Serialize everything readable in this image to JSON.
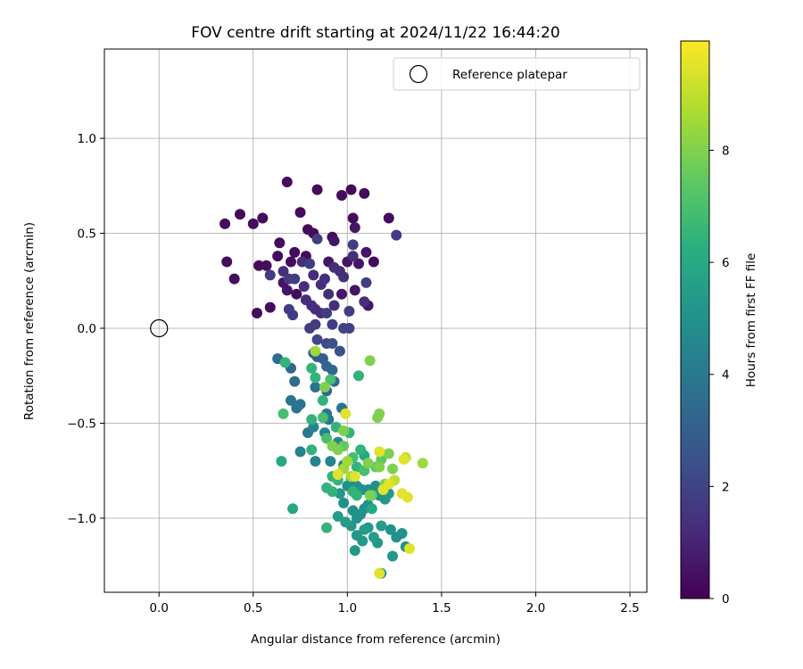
{
  "chart_data": {
    "type": "scatter",
    "title": "FOV centre drift starting at 2024/11/22 16:44:20",
    "xlabel": "Angular distance from reference (arcmin)",
    "ylabel": "Rotation from reference (arcmin)",
    "xlim": [
      -0.29,
      2.59
    ],
    "ylim": [
      -1.39,
      1.47
    ],
    "xticks": [
      0.0,
      0.5,
      1.0,
      1.5,
      2.0,
      2.5
    ],
    "xtick_labels": [
      "0.0",
      "0.5",
      "1.0",
      "1.5",
      "2.0",
      "2.5"
    ],
    "yticks": [
      -1.0,
      -0.5,
      0.0,
      0.5,
      1.0
    ],
    "ytick_labels": [
      "−1.0",
      "−0.5",
      "0.0",
      "0.5",
      "1.0"
    ],
    "grid": true,
    "legend": {
      "position": "top-right",
      "entries": [
        "Reference platepar"
      ]
    },
    "reference_point": {
      "x": 0.0,
      "y": 0.0,
      "label": "Reference platepar"
    },
    "colorbar": {
      "label": "Hours from first FF file",
      "colormap": "viridis",
      "range": [
        0,
        9.95
      ],
      "ticks": [
        0,
        2,
        4,
        6,
        8
      ],
      "tick_labels": [
        "0",
        "2",
        "4",
        "6",
        "8"
      ]
    },
    "points": [
      [
        0.35,
        0.55,
        0.3
      ],
      [
        0.43,
        0.6,
        0.3
      ],
      [
        0.5,
        0.55,
        0.3
      ],
      [
        0.55,
        0.58,
        0.3
      ],
      [
        0.68,
        0.77,
        0.3
      ],
      [
        0.84,
        0.73,
        0.3
      ],
      [
        0.75,
        0.61,
        0.3
      ],
      [
        1.02,
        0.73,
        0.3
      ],
      [
        1.09,
        0.71,
        0.3
      ],
      [
        0.97,
        0.7,
        0.3
      ],
      [
        1.22,
        0.58,
        0.3
      ],
      [
        1.26,
        0.49,
        1.8
      ],
      [
        1.03,
        0.58,
        0.3
      ],
      [
        0.36,
        0.35,
        0.3
      ],
      [
        0.4,
        0.26,
        0.3
      ],
      [
        0.53,
        0.33,
        0.3
      ],
      [
        0.57,
        0.33,
        0.3
      ],
      [
        0.63,
        0.38,
        0.3
      ],
      [
        0.64,
        0.45,
        0.3
      ],
      [
        0.7,
        0.35,
        0.3
      ],
      [
        0.72,
        0.4,
        0.3
      ],
      [
        0.79,
        0.52,
        0.3
      ],
      [
        0.82,
        0.5,
        0.3
      ],
      [
        0.92,
        0.48,
        0.3
      ],
      [
        0.78,
        0.38,
        0.3
      ],
      [
        0.76,
        0.35,
        1.3
      ],
      [
        0.84,
        0.47,
        1.8
      ],
      [
        0.93,
        0.46,
        0.6
      ],
      [
        1.04,
        0.53,
        0.6
      ],
      [
        1.03,
        0.44,
        1.8
      ],
      [
        1.1,
        0.4,
        0.6
      ],
      [
        1.14,
        0.35,
        0.3
      ],
      [
        0.59,
        0.28,
        1.8
      ],
      [
        0.66,
        0.3,
        1.3
      ],
      [
        0.69,
        0.26,
        1.8
      ],
      [
        0.72,
        0.26,
        1.8
      ],
      [
        0.66,
        0.24,
        0.6
      ],
      [
        0.68,
        0.2,
        0.6
      ],
      [
        0.73,
        0.18,
        0.3
      ],
      [
        0.77,
        0.22,
        1.3
      ],
      [
        0.8,
        0.34,
        1.8
      ],
      [
        0.82,
        0.28,
        1.3
      ],
      [
        0.86,
        0.23,
        1.3
      ],
      [
        0.88,
        0.26,
        1.3
      ],
      [
        0.9,
        0.35,
        0.6
      ],
      [
        0.93,
        0.32,
        1.3
      ],
      [
        0.96,
        0.3,
        1.3
      ],
      [
        0.98,
        0.27,
        1.3
      ],
      [
        1.0,
        0.35,
        0.6
      ],
      [
        1.03,
        0.38,
        1.3
      ],
      [
        1.06,
        0.34,
        0.6
      ],
      [
        1.1,
        0.24,
        1.8
      ],
      [
        0.52,
        0.08,
        0.3
      ],
      [
        0.59,
        0.11,
        0.3
      ],
      [
        0.69,
        0.1,
        1.8
      ],
      [
        0.71,
        0.07,
        1.8
      ],
      [
        0.78,
        0.15,
        1.3
      ],
      [
        0.81,
        0.12,
        1.3
      ],
      [
        0.83,
        0.1,
        1.3
      ],
      [
        0.86,
        0.08,
        1.3
      ],
      [
        0.9,
        0.18,
        1.3
      ],
      [
        0.93,
        0.12,
        1.3
      ],
      [
        0.97,
        0.18,
        0.6
      ],
      [
        1.01,
        0.09,
        1.8
      ],
      [
        1.04,
        0.2,
        0.6
      ],
      [
        1.09,
        0.14,
        1.3
      ],
      [
        1.11,
        0.12,
        0.6
      ],
      [
        0.8,
        0.0,
        1.8
      ],
      [
        0.83,
        0.02,
        1.8
      ],
      [
        0.89,
        0.08,
        1.8
      ],
      [
        0.92,
        0.02,
        1.8
      ],
      [
        0.98,
        0.0,
        2.0
      ],
      [
        1.01,
        0.0,
        2.0
      ],
      [
        0.84,
        -0.06,
        2.2
      ],
      [
        0.89,
        -0.08,
        2.2
      ],
      [
        0.92,
        -0.08,
        2.5
      ],
      [
        0.96,
        -0.12,
        2.5
      ],
      [
        0.82,
        -0.13,
        3.0
      ],
      [
        0.84,
        -0.15,
        3.0
      ],
      [
        0.87,
        -0.16,
        3.0
      ],
      [
        0.89,
        -0.2,
        3.3
      ],
      [
        0.92,
        -0.22,
        3.3
      ],
      [
        0.63,
        -0.16,
        3.5
      ],
      [
        0.7,
        -0.21,
        3.3
      ],
      [
        0.72,
        -0.28,
        3.5
      ],
      [
        0.7,
        -0.38,
        3.8
      ],
      [
        0.73,
        -0.42,
        3.8
      ],
      [
        0.75,
        -0.4,
        3.8
      ],
      [
        0.83,
        -0.31,
        3.8
      ],
      [
        0.89,
        -0.33,
        3.3
      ],
      [
        0.93,
        -0.28,
        3.5
      ],
      [
        0.97,
        -0.42,
        3.8
      ],
      [
        0.89,
        -0.45,
        4.0
      ],
      [
        0.9,
        -0.48,
        4.0
      ],
      [
        0.79,
        -0.55,
        4.0
      ],
      [
        0.82,
        -0.52,
        4.5
      ],
      [
        0.75,
        -0.65,
        4.5
      ],
      [
        0.83,
        -0.7,
        4.5
      ],
      [
        0.91,
        -0.7,
        4.5
      ],
      [
        0.88,
        -0.55,
        4.5
      ],
      [
        0.95,
        -0.6,
        4.5
      ],
      [
        0.98,
        -0.72,
        4.5
      ],
      [
        1.0,
        -0.83,
        5.0
      ],
      [
        1.02,
        -0.79,
        5.0
      ],
      [
        1.05,
        -0.83,
        5.0
      ],
      [
        1.08,
        -0.85,
        5.0
      ],
      [
        1.11,
        -0.85,
        5.0
      ],
      [
        1.15,
        -0.83,
        5.0
      ],
      [
        1.17,
        -0.88,
        5.0
      ],
      [
        1.2,
        -0.9,
        5.3
      ],
      [
        1.22,
        -0.87,
        5.3
      ],
      [
        0.96,
        -0.87,
        5.3
      ],
      [
        0.98,
        -0.92,
        5.0
      ],
      [
        1.03,
        -0.96,
        5.0
      ],
      [
        1.05,
        -1.0,
        5.0
      ],
      [
        1.07,
        -0.98,
        5.0
      ],
      [
        1.09,
        -0.95,
        5.0
      ],
      [
        1.11,
        -0.93,
        5.0
      ],
      [
        0.95,
        -0.99,
        5.5
      ],
      [
        0.99,
        -1.02,
        5.5
      ],
      [
        1.02,
        -1.04,
        5.3
      ],
      [
        1.05,
        -1.09,
        5.3
      ],
      [
        1.08,
        -1.12,
        5.3
      ],
      [
        1.11,
        -1.05,
        5.3
      ],
      [
        1.14,
        -1.1,
        5.5
      ],
      [
        1.16,
        -1.13,
        5.3
      ],
      [
        1.18,
        -1.04,
        5.5
      ],
      [
        1.23,
        -1.06,
        5.0
      ],
      [
        1.26,
        -1.1,
        5.0
      ],
      [
        1.29,
        -1.08,
        5.0
      ],
      [
        1.31,
        -1.15,
        5.0
      ],
      [
        1.24,
        -1.2,
        5.3
      ],
      [
        1.18,
        -1.29,
        5.5
      ],
      [
        1.04,
        -1.17,
        5.3
      ],
      [
        1.09,
        -1.06,
        5.5
      ],
      [
        0.71,
        -0.95,
        6.0
      ],
      [
        0.65,
        -0.7,
        6.0
      ],
      [
        0.67,
        -0.18,
        6.5
      ],
      [
        0.66,
        -0.45,
        7.0
      ],
      [
        0.81,
        -0.21,
        6.5
      ],
      [
        0.83,
        -0.26,
        6.5
      ],
      [
        0.87,
        -0.38,
        6.5
      ],
      [
        0.91,
        -0.27,
        7.0
      ],
      [
        1.06,
        -0.25,
        6.5
      ],
      [
        0.81,
        -0.48,
        6.5
      ],
      [
        0.81,
        -0.64,
        6.5
      ],
      [
        0.87,
        -0.47,
        7.0
      ],
      [
        0.89,
        -0.58,
        7.0
      ],
      [
        0.94,
        -0.52,
        6.5
      ],
      [
        0.92,
        -0.78,
        6.5
      ],
      [
        0.95,
        -0.8,
        6.5
      ],
      [
        0.98,
        -0.54,
        8.0
      ],
      [
        0.98,
        -0.62,
        7.5
      ],
      [
        1.01,
        -0.55,
        6.5
      ],
      [
        1.03,
        -0.68,
        7.0
      ],
      [
        1.05,
        -0.73,
        6.5
      ],
      [
        1.07,
        -0.64,
        6.5
      ],
      [
        1.09,
        -0.67,
        6.0
      ],
      [
        1.03,
        -0.86,
        6.5
      ],
      [
        1.09,
        -0.75,
        7.0
      ],
      [
        1.11,
        -0.71,
        8.0
      ],
      [
        1.13,
        -0.88,
        7.5
      ],
      [
        1.15,
        -0.73,
        7.5
      ],
      [
        1.17,
        -0.73,
        8.0
      ],
      [
        1.18,
        -0.69,
        7.5
      ],
      [
        1.16,
        -0.47,
        8.0
      ],
      [
        1.17,
        -0.45,
        8.0
      ],
      [
        1.12,
        -0.17,
        8.0
      ],
      [
        0.83,
        -0.12,
        8.5
      ],
      [
        0.88,
        -0.31,
        8.0
      ],
      [
        0.92,
        -0.62,
        8.0
      ],
      [
        0.95,
        -0.64,
        8.0
      ],
      [
        0.98,
        -0.74,
        8.5
      ],
      [
        1.0,
        -0.7,
        8.5
      ],
      [
        1.02,
        -0.78,
        8.5
      ],
      [
        1.04,
        -0.78,
        9.5
      ],
      [
        0.95,
        -0.77,
        9.5
      ],
      [
        0.99,
        -0.45,
        9.5
      ],
      [
        1.17,
        -0.65,
        9.5
      ],
      [
        1.22,
        -0.66,
        8.0
      ],
      [
        1.24,
        -0.74,
        8.0
      ],
      [
        1.2,
        -0.82,
        8.0
      ],
      [
        1.19,
        -0.85,
        9.5
      ],
      [
        1.22,
        -0.82,
        9.5
      ],
      [
        1.25,
        -0.8,
        9.0
      ],
      [
        1.29,
        -0.87,
        9.5
      ],
      [
        1.32,
        -0.89,
        9.5
      ],
      [
        1.3,
        -0.69,
        9.5
      ],
      [
        1.31,
        -0.68,
        9.0
      ],
      [
        1.4,
        -0.71,
        8.5
      ],
      [
        1.33,
        -1.16,
        9.5
      ],
      [
        1.17,
        -1.29,
        9.5
      ],
      [
        0.89,
        -1.05,
        6.5
      ],
      [
        0.89,
        -0.84,
        6.5
      ],
      [
        0.92,
        -0.86,
        6.5
      ],
      [
        1.05,
        -0.88,
        6.5
      ],
      [
        1.13,
        -0.95,
        6.0
      ],
      [
        1.12,
        -0.88,
        8.0
      ]
    ]
  }
}
